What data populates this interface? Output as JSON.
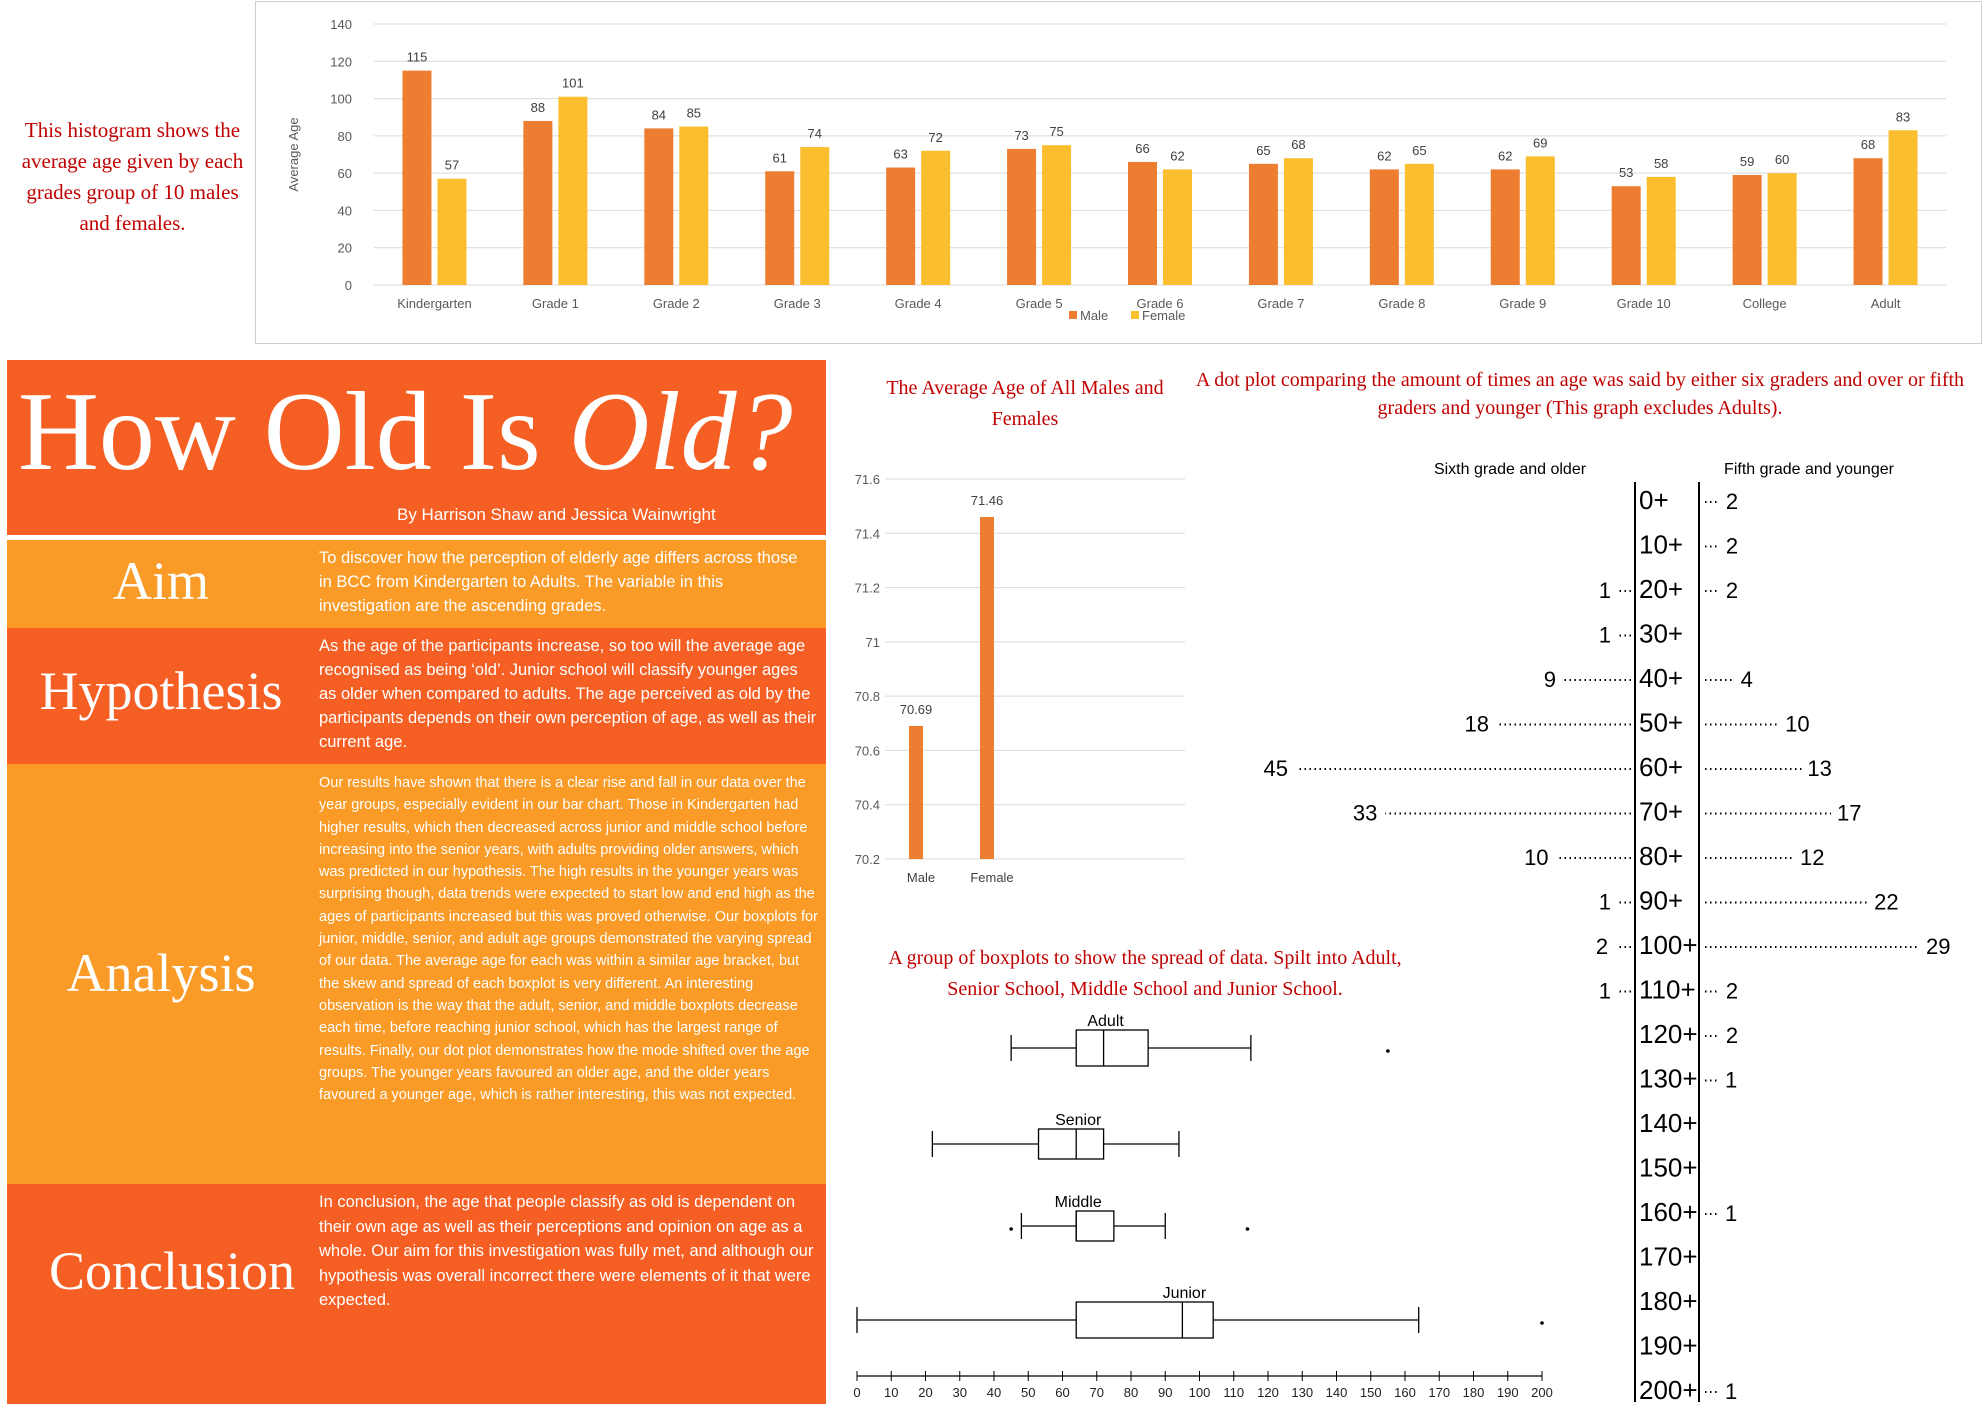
{
  "intro_text": "This histogram shows the average age given by each grades group of 10 males and females.",
  "poster": {
    "title_main": "How Old Is",
    "title_script": "Old?",
    "authors": "By Harrison Shaw and Jessica Wainwright",
    "aim": {
      "heading": "Aim",
      "text": "To discover how the perception of elderly age differs across those in BCC from Kindergarten to Adults. The variable in this investigation are the ascending grades."
    },
    "hypothesis": {
      "heading": "Hypothesis",
      "text": "As the age of the participants increase, so too will the average age recognised as being ‘old’. Junior school will classify younger ages as older when compared to adults. The age perceived as old by the participants depends on their own perception of age, as well as their current age."
    },
    "analysis": {
      "heading": "Analysis",
      "text": "Our results have shown that there is a clear rise and fall in our data over the year groups, especially evident in our bar chart. Those in Kindergarten had higher results, which then decreased across junior and middle school before increasing into the senior years, with adults providing older answers, which was predicted in our hypothesis. The high results in the younger years was surprising though, data trends were expected to start low and end high as the ages of participants increased but this was proved otherwise. Our boxplots for junior, middle, senior, and adult age groups demonstrated the varying spread of our data. The average age for each was within a similar age bracket, but the skew and spread of each boxplot is very different. An interesting observation is the way that the adult, senior, and middle boxplots decrease each time, before reaching junior school, which has the largest range of results. Finally, our dot plot demonstrates how the mode shifted over the age groups. The younger years favoured an older age, and the older years favoured a younger age, which is rather interesting, this was not expected."
    },
    "conclusion": {
      "heading": "Conclusion",
      "text": "In conclusion, the age that people classify as old is dependent on their own age as well as their perceptions and opinion on age as a whole. Our aim for this investigation was fully met, and although our hypothesis was overall incorrect there were elements of it that were expected."
    }
  },
  "chart_data": [
    {
      "type": "bar",
      "title": "",
      "xlabel": "",
      "ylabel": "Average Age",
      "ylim": [
        0,
        140
      ],
      "yticks": [
        0,
        20,
        40,
        60,
        80,
        100,
        120,
        140
      ],
      "categories": [
        "Kindergarten",
        "Grade 1",
        "Grade 2",
        "Grade 3",
        "Grade 4",
        "Grade 5",
        "Grade 6",
        "Grade 7",
        "Grade 8",
        "Grade 9",
        "Grade 10",
        "College",
        "Adult"
      ],
      "series": [
        {
          "name": "Male",
          "color": "#ed7d31",
          "values": [
            115,
            88,
            84,
            61,
            63,
            73,
            66,
            65,
            62,
            62,
            53,
            59,
            68
          ]
        },
        {
          "name": "Female",
          "color": "#fbbe2e",
          "values": [
            57,
            101,
            85,
            74,
            72,
            75,
            62,
            68,
            65,
            69,
            58,
            60,
            83
          ]
        }
      ],
      "legend": "bottom-center",
      "grid": true
    },
    {
      "type": "bar",
      "title": "The Average Age of All Males and Females",
      "categories": [
        "Male",
        "Female"
      ],
      "values": [
        70.69,
        71.46
      ],
      "ylim": [
        70.2,
        71.6
      ],
      "yticks": [
        "70.2",
        "70.4",
        "70.6",
        "70.8",
        "71",
        "71.2",
        "71.4",
        "71.6"
      ],
      "color": "#ed7d31",
      "grid": true
    },
    {
      "type": "boxplot",
      "title": "A group of boxplots to show the spread of data. Spilt into Adult, Senior School, Middle School and Junior School.",
      "axis_ticks": [
        0,
        10,
        20,
        30,
        40,
        50,
        60,
        70,
        80,
        90,
        100,
        110,
        120,
        130,
        140,
        150,
        160,
        170,
        180,
        190,
        200
      ],
      "groups": [
        {
          "name": "Adult",
          "min": 45,
          "q1": 64,
          "median": 72,
          "q3": 85,
          "max": 115,
          "outliers": [
            155
          ]
        },
        {
          "name": "Senior",
          "min": 22,
          "q1": 53,
          "median": 64,
          "q3": 72,
          "max": 94,
          "outliers": []
        },
        {
          "name": "Middle",
          "min": 48,
          "q1": 64,
          "median": 64,
          "q3": 75,
          "max": 90,
          "outliers": [
            45,
            114
          ]
        },
        {
          "name": "Junior",
          "min": 0,
          "q1": 64,
          "median": 95,
          "q3": 104,
          "max": 164,
          "outliers": [
            200
          ]
        }
      ]
    },
    {
      "type": "dotplot",
      "title": "A dot plot comparing the amount of times an age was said by either six graders and over or fifth graders and younger (This graph excludes Adults).",
      "left_label": "Sixth grade and older",
      "right_label": "Fifth grade and younger",
      "rows": [
        {
          "age": "0+",
          "left": "",
          "right": "2"
        },
        {
          "age": "10+",
          "left": "",
          "right": "2"
        },
        {
          "age": "20+",
          "left": "1",
          "right": "2"
        },
        {
          "age": "30+",
          "left": "1",
          "right": ""
        },
        {
          "age": "40+",
          "left": "9",
          "right": "4"
        },
        {
          "age": "50+",
          "left": "18",
          "right": "10"
        },
        {
          "age": "60+",
          "left": "45",
          "right": "13"
        },
        {
          "age": "70+",
          "left": "33",
          "right": "17"
        },
        {
          "age": "80+",
          "left": "10",
          "right": "12"
        },
        {
          "age": "90+",
          "left": "1",
          "right": "22"
        },
        {
          "age": "100+",
          "left": "2",
          "right": "29"
        },
        {
          "age": "110+",
          "left": "1",
          "right": "2"
        },
        {
          "age": "120+",
          "left": "",
          "right": "2"
        },
        {
          "age": "130+",
          "left": "",
          "right": "1"
        },
        {
          "age": "140+",
          "left": "",
          "right": ""
        },
        {
          "age": "150+",
          "left": "",
          "right": ""
        },
        {
          "age": "160+",
          "left": "",
          "right": "1"
        },
        {
          "age": "170+",
          "left": "",
          "right": ""
        },
        {
          "age": "180+",
          "left": "",
          "right": ""
        },
        {
          "age": "190+",
          "left": "",
          "right": ""
        },
        {
          "age": "200+",
          "left": "",
          "right": "1"
        }
      ]
    }
  ]
}
